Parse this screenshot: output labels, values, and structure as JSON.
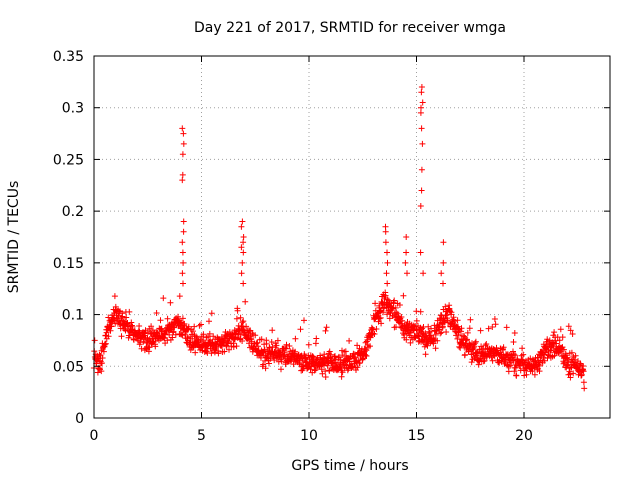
{
  "chart_data": {
    "type": "scatter",
    "title": "Day 221 of 2017, SRMTID for receiver wmga",
    "xlabel": "GPS time / hours",
    "ylabel": "SRMTID / TECUs",
    "xlim": [
      0,
      24
    ],
    "ylim": [
      0,
      0.35
    ],
    "xticks": [
      0,
      5,
      10,
      15,
      20
    ],
    "xtick_labels": [
      "0",
      "5",
      "10",
      "15",
      "20"
    ],
    "yticks": [
      0,
      0.05,
      0.1,
      0.15,
      0.2,
      0.25,
      0.3,
      0.35
    ],
    "ytick_labels": [
      "0",
      "0.05",
      "0.1",
      "0.15",
      "0.2",
      "0.25",
      "0.3",
      "0.35"
    ],
    "grid": true,
    "marker": "+",
    "color": "#ff0000",
    "trend": [
      [
        0.0,
        0.06
      ],
      [
        0.3,
        0.05
      ],
      [
        0.7,
        0.09
      ],
      [
        1.0,
        0.1
      ],
      [
        1.5,
        0.09
      ],
      [
        2.0,
        0.08
      ],
      [
        2.5,
        0.075
      ],
      [
        3.0,
        0.08
      ],
      [
        3.5,
        0.085
      ],
      [
        4.0,
        0.09
      ],
      [
        4.5,
        0.075
      ],
      [
        5.0,
        0.07
      ],
      [
        5.5,
        0.07
      ],
      [
        6.0,
        0.075
      ],
      [
        6.5,
        0.08
      ],
      [
        7.0,
        0.085
      ],
      [
        7.5,
        0.07
      ],
      [
        8.0,
        0.06
      ],
      [
        8.5,
        0.065
      ],
      [
        9.0,
        0.06
      ],
      [
        9.5,
        0.055
      ],
      [
        10.0,
        0.055
      ],
      [
        10.5,
        0.05
      ],
      [
        11.0,
        0.055
      ],
      [
        11.5,
        0.05
      ],
      [
        12.0,
        0.055
      ],
      [
        12.5,
        0.06
      ],
      [
        13.0,
        0.09
      ],
      [
        13.5,
        0.11
      ],
      [
        14.0,
        0.1
      ],
      [
        14.5,
        0.085
      ],
      [
        15.0,
        0.08
      ],
      [
        15.5,
        0.075
      ],
      [
        16.0,
        0.085
      ],
      [
        16.5,
        0.1
      ],
      [
        17.0,
        0.08
      ],
      [
        17.5,
        0.065
      ],
      [
        18.0,
        0.06
      ],
      [
        18.5,
        0.065
      ],
      [
        19.0,
        0.06
      ],
      [
        19.5,
        0.055
      ],
      [
        20.0,
        0.05
      ],
      [
        20.5,
        0.05
      ],
      [
        21.0,
        0.065
      ],
      [
        21.5,
        0.07
      ],
      [
        22.0,
        0.055
      ],
      [
        22.5,
        0.05
      ],
      [
        22.8,
        0.045
      ]
    ],
    "spikes": [
      {
        "x": 4.15,
        "values": [
          0.28,
          0.275,
          0.265,
          0.255,
          0.235,
          0.23,
          0.19,
          0.18,
          0.17,
          0.16,
          0.15,
          0.14,
          0.13
        ]
      },
      {
        "x": 6.9,
        "values": [
          0.19,
          0.185,
          0.175,
          0.17,
          0.165,
          0.16,
          0.15,
          0.14,
          0.13
        ]
      },
      {
        "x": 13.6,
        "values": [
          0.185,
          0.18,
          0.17,
          0.16,
          0.15,
          0.14,
          0.13
        ]
      },
      {
        "x": 14.5,
        "values": [
          0.175,
          0.16,
          0.15,
          0.14
        ]
      },
      {
        "x": 15.25,
        "values": [
          0.32,
          0.315,
          0.305,
          0.3,
          0.295,
          0.28,
          0.265,
          0.24,
          0.22,
          0.205,
          0.16,
          0.14
        ]
      },
      {
        "x": 16.2,
        "values": [
          0.17,
          0.15,
          0.14,
          0.13
        ]
      }
    ],
    "x_range": [
      0.0,
      22.8
    ],
    "sample_count": 1600
  }
}
